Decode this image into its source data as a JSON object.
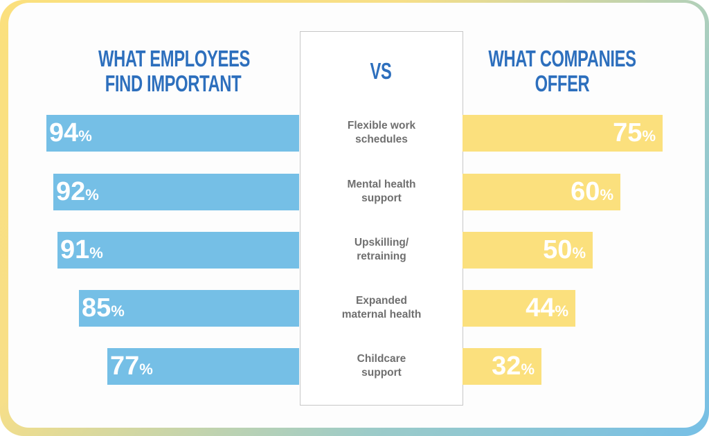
{
  "chart_data": {
    "type": "bar",
    "title_left": "WHAT EMPLOYEES FIND IMPORTANT",
    "title_center": "VS",
    "title_right": "WHAT COMPANIES OFFER",
    "categories": [
      "Flexible work schedules",
      "Mental health support",
      "Upskilling/ retraining",
      "Expanded maternal health",
      "Childcare support"
    ],
    "series": [
      {
        "name": "What employees find important",
        "values": [
          94,
          92,
          91,
          85,
          77
        ],
        "color": "#75bfe6"
      },
      {
        "name": "What companies offer",
        "values": [
          75,
          60,
          50,
          44,
          32
        ],
        "color": "#fbe07d"
      }
    ],
    "unit": "%"
  }
}
